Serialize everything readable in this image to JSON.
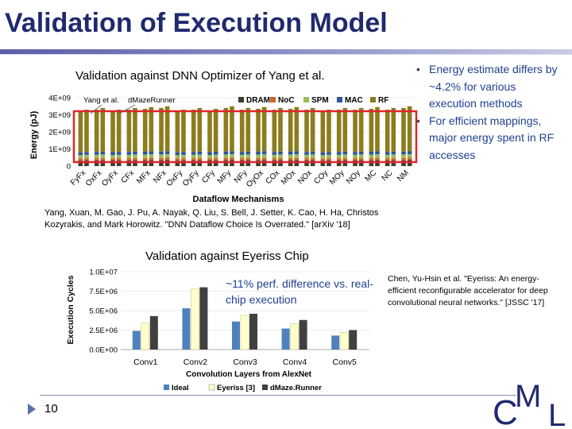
{
  "slide": {
    "title": "Validation of Execution Model",
    "page_number": "10",
    "logo": "CML"
  },
  "section1": {
    "heading": "Validation against DNN Optimizer of Yang et al.",
    "bullets": [
      "Energy estimate differs by ~4.2% for various execution methods",
      "For efficient mappings, major energy spent in RF accesses"
    ],
    "reference": "Yang, Xuan, M. Gao, J. Pu, A. Nayak, Q. Liu, S. Bell, J. Setter, K. Cao, H. Ha, Christos Kozyrakis, and Mark Horowitz. \"DNN Dataflow Choice Is Overrated.\" [arXiv '18]"
  },
  "section2": {
    "heading": "Validation against Eyeriss Chip",
    "reference": "Chen, Yu-Hsin et al. \"Eyeriss: An energy-efficient reconfigurable accelerator for deep convolutional neural networks.\" [JSSC '17]"
  },
  "colors": {
    "title": "#1f2a6e",
    "dram": "#403a2c",
    "noc": "#c8692a",
    "spm": "#9bbb59",
    "mac": "#2f5597",
    "rf": "#8b7d1f",
    "ideal": "#4f81bd",
    "eyeriss": "#ffffcc",
    "dmaze": "#404040",
    "highlight": "#e0262a"
  },
  "chart_data": [
    {
      "type": "bar",
      "title": "",
      "xlabel": "Dataflow Mechanisms",
      "ylabel": "Energy (pJ)",
      "ylim": [
        0,
        4000000000.0
      ],
      "yticks": [
        "0",
        "1E+09",
        "2E+09",
        "3E+09",
        "4E+09"
      ],
      "series_labels": [
        "Yang et al.",
        "dMazeRunner"
      ],
      "legend": [
        "DRAM",
        "NoC",
        "SPM",
        "MAC",
        "RF"
      ],
      "categories": [
        "FyFx",
        "OxFx",
        "OyFx",
        "CFx",
        "MFx",
        "NFx",
        "OxFy",
        "OyFy",
        "CFy",
        "MFy",
        "NFy",
        "OyOx",
        "COx",
        "MOx",
        "NOx",
        "COy",
        "MOy",
        "NOy",
        "MC",
        "NC",
        "NM"
      ],
      "series": [
        {
          "name": "Yang et al.",
          "values": [
            3200000000.0,
            3300000000.0,
            3250000000.0,
            3300000000.0,
            3350000000.0,
            3400000000.0,
            3200000000.0,
            3300000000.0,
            3250000000.0,
            3400000000.0,
            3300000000.0,
            3350000000.0,
            3300000000.0,
            3350000000.0,
            3300000000.0,
            3200000000.0,
            3300000000.0,
            3300000000.0,
            3350000000.0,
            3300000000.0,
            3400000000.0
          ]
        },
        {
          "name": "dMazeRunner",
          "values": [
            3300000000.0,
            3400000000.0,
            3300000000.0,
            3400000000.0,
            3450000000.0,
            3500000000.0,
            3300000000.0,
            3400000000.0,
            3350000000.0,
            3500000000.0,
            3400000000.0,
            3450000000.0,
            3400000000.0,
            3450000000.0,
            3400000000.0,
            3300000000.0,
            3400000000.0,
            3400000000.0,
            3450000000.0,
            3400000000.0,
            3500000000.0
          ]
        }
      ]
    },
    {
      "type": "bar",
      "title": "",
      "xlabel": "Convolution Layers from AlexNet",
      "ylabel": "Execution Cycles",
      "ylim": [
        0,
        10000000
      ],
      "yticks": [
        "0.0E+00",
        "2.5E+06",
        "5.0E+06",
        "7.5E+06",
        "1.0E+07"
      ],
      "annotation": "~11% perf. difference vs. real-chip execution",
      "categories": [
        "Conv1",
        "Conv2",
        "Conv3",
        "Conv4",
        "Conv5"
      ],
      "series": [
        {
          "name": "Ideal",
          "values": [
            2400000,
            5300000,
            3600000,
            2700000,
            1800000
          ]
        },
        {
          "name": "Eyeriss [3]",
          "values": [
            3400000,
            7800000,
            4400000,
            3300000,
            2200000
          ]
        },
        {
          "name": "dMaze.Runner",
          "values": [
            4300000,
            8000000,
            4600000,
            3800000,
            2500000
          ]
        }
      ]
    }
  ]
}
